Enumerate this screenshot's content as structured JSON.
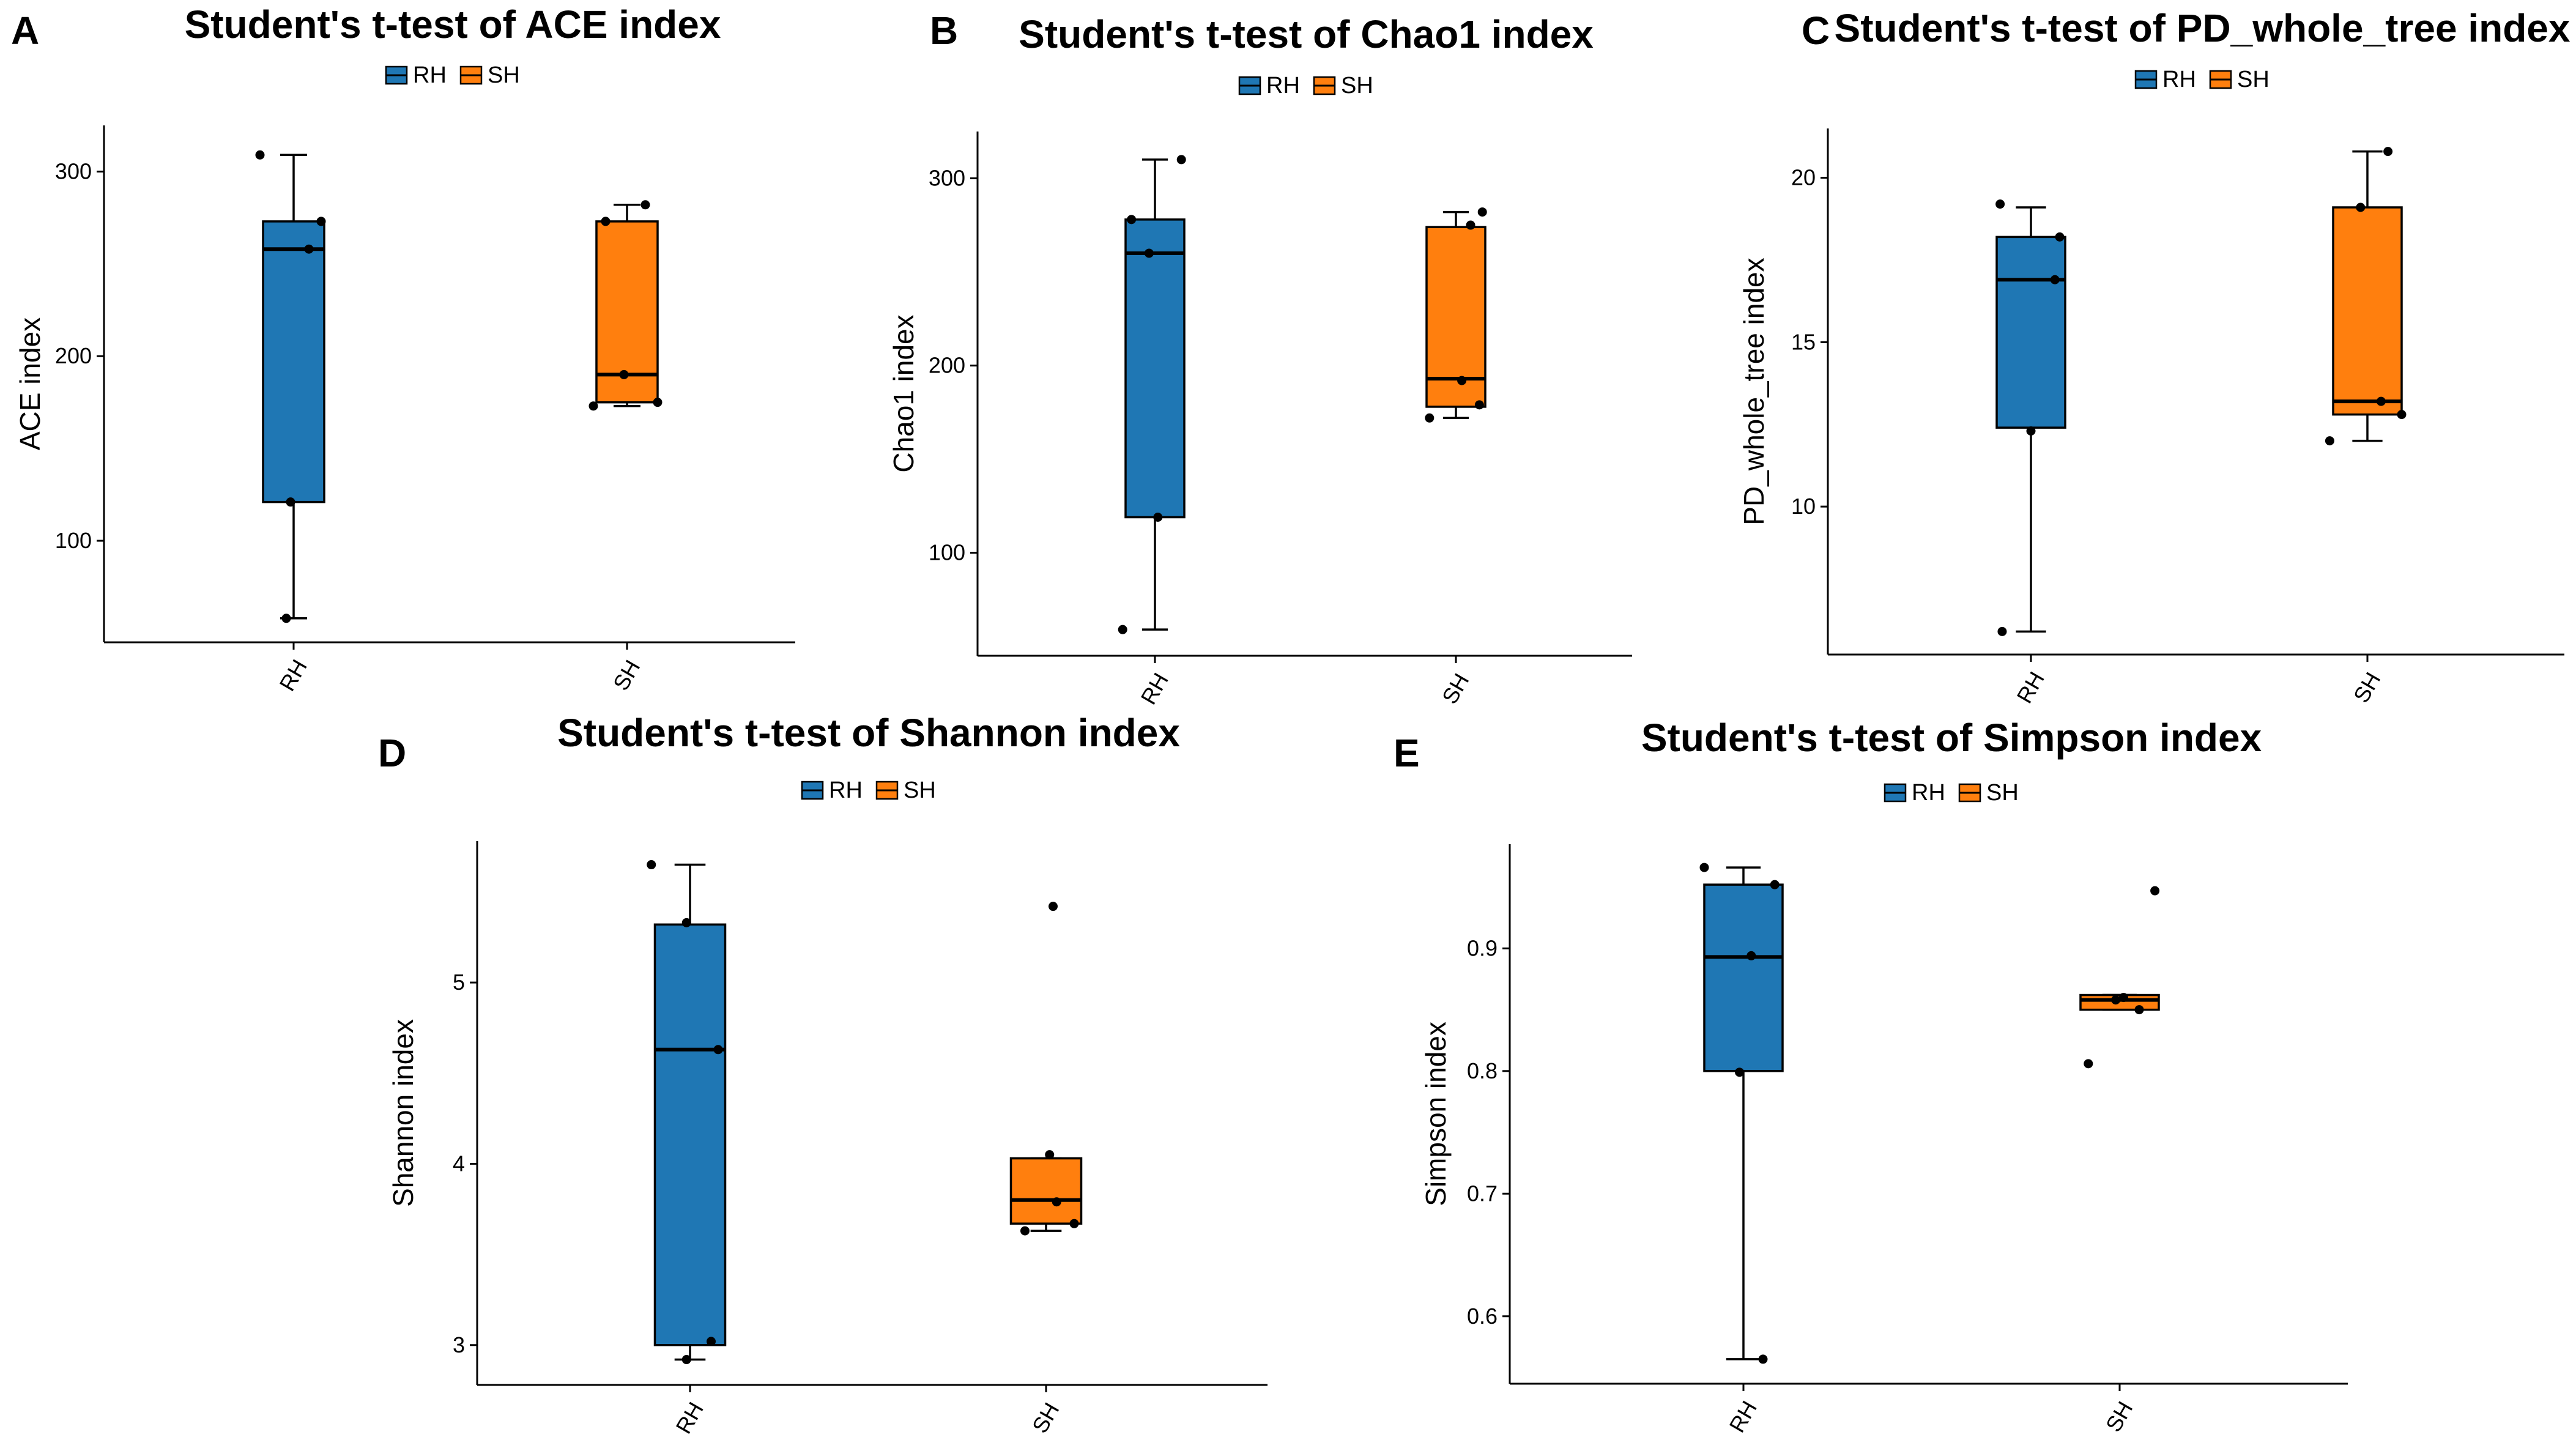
{
  "colors": {
    "RH": "#1f77b4",
    "SH": "#ff7f0e",
    "ink": "#000000"
  },
  "chart_data": [
    {
      "panel": "A",
      "type": "box",
      "title": "Student's t-test of ACE index",
      "legend": [
        "RH",
        "SH"
      ],
      "categories": [
        "RH",
        "SH"
      ],
      "ylabel": "ACE index",
      "ylim": [
        45,
        325
      ],
      "yticks": [
        100,
        200,
        300
      ],
      "boxes": [
        {
          "group": "RH",
          "min": 58,
          "q1": 121,
          "median": 258,
          "q3": 273,
          "max": 309
        },
        {
          "group": "SH",
          "min": 173,
          "q1": 175,
          "median": 190,
          "q3": 273,
          "max": 282
        }
      ],
      "points": [
        {
          "group": "RH",
          "values": [
            309,
            273,
            258,
            121,
            58
          ]
        },
        {
          "group": "SH",
          "values": [
            282,
            273,
            190,
            175,
            173
          ]
        }
      ]
    },
    {
      "panel": "B",
      "type": "box",
      "title": "Student's t-test of Chao1 index",
      "legend": [
        "RH",
        "SH"
      ],
      "categories": [
        "RH",
        "SH"
      ],
      "ylabel": "Chao1 index",
      "ylim": [
        45,
        325
      ],
      "yticks": [
        100,
        200,
        300
      ],
      "boxes": [
        {
          "group": "RH",
          "min": 59,
          "q1": 119,
          "median": 260,
          "q3": 278,
          "max": 310
        },
        {
          "group": "SH",
          "min": 172,
          "q1": 178,
          "median": 193,
          "q3": 274,
          "max": 282
        }
      ],
      "points": [
        {
          "group": "RH",
          "values": [
            310,
            278,
            260,
            119,
            59
          ]
        },
        {
          "group": "SH",
          "values": [
            282,
            275,
            192,
            179,
            172
          ]
        }
      ]
    },
    {
      "panel": "C",
      "type": "box",
      "title": "Student's t-test of PD_whole_tree index",
      "legend": [
        "RH",
        "SH"
      ],
      "categories": [
        "RH",
        "SH"
      ],
      "ylabel": "PD_whole_tree index",
      "ylim": [
        5.5,
        21.5
      ],
      "yticks": [
        10,
        15,
        20
      ],
      "boxes": [
        {
          "group": "RH",
          "min": 6.2,
          "q1": 12.4,
          "median": 16.9,
          "q3": 18.2,
          "max": 19.1
        },
        {
          "group": "SH",
          "min": 12.0,
          "q1": 12.8,
          "median": 13.2,
          "q3": 19.1,
          "max": 20.8
        }
      ],
      "points": [
        {
          "group": "RH",
          "values": [
            19.2,
            18.2,
            16.9,
            12.3,
            6.2
          ]
        },
        {
          "group": "SH",
          "values": [
            20.8,
            19.1,
            13.2,
            12.8,
            12.0
          ]
        }
      ]
    },
    {
      "panel": "D",
      "type": "box",
      "title": "Student's t-test of Shannon index",
      "legend": [
        "RH",
        "SH"
      ],
      "categories": [
        "RH",
        "SH"
      ],
      "ylabel": "Shannon index",
      "ylim": [
        2.78,
        5.78
      ],
      "yticks": [
        3,
        4,
        5
      ],
      "boxes": [
        {
          "group": "RH",
          "min": 2.92,
          "q1": 3.0,
          "median": 4.63,
          "q3": 5.32,
          "max": 5.65
        },
        {
          "group": "SH",
          "min": 3.63,
          "q1": 3.67,
          "median": 3.8,
          "q3": 4.03,
          "max": 4.03
        }
      ],
      "points": [
        {
          "group": "RH",
          "values": [
            5.65,
            5.33,
            4.63,
            3.02,
            2.92
          ]
        },
        {
          "group": "SH",
          "values": [
            5.42,
            4.05,
            3.79,
            3.67,
            3.63
          ]
        }
      ]
    },
    {
      "panel": "E",
      "type": "box",
      "title": "Student's t-test of Simpson index",
      "legend": [
        "RH",
        "SH"
      ],
      "categories": [
        "RH",
        "SH"
      ],
      "ylabel": "Simpson index",
      "ylim": [
        0.545,
        0.985
      ],
      "yticks": [
        0.6,
        0.7,
        0.8,
        0.9
      ],
      "boxes": [
        {
          "group": "RH",
          "min": 0.565,
          "q1": 0.8,
          "median": 0.893,
          "q3": 0.952,
          "max": 0.966
        },
        {
          "group": "SH",
          "min": 0.85,
          "q1": 0.85,
          "median": 0.858,
          "q3": 0.862,
          "max": 0.862
        }
      ],
      "points": [
        {
          "group": "RH",
          "values": [
            0.966,
            0.952,
            0.894,
            0.799,
            0.565
          ]
        },
        {
          "group": "SH",
          "values": [
            0.947,
            0.86,
            0.858,
            0.85,
            0.806
          ]
        }
      ]
    }
  ]
}
